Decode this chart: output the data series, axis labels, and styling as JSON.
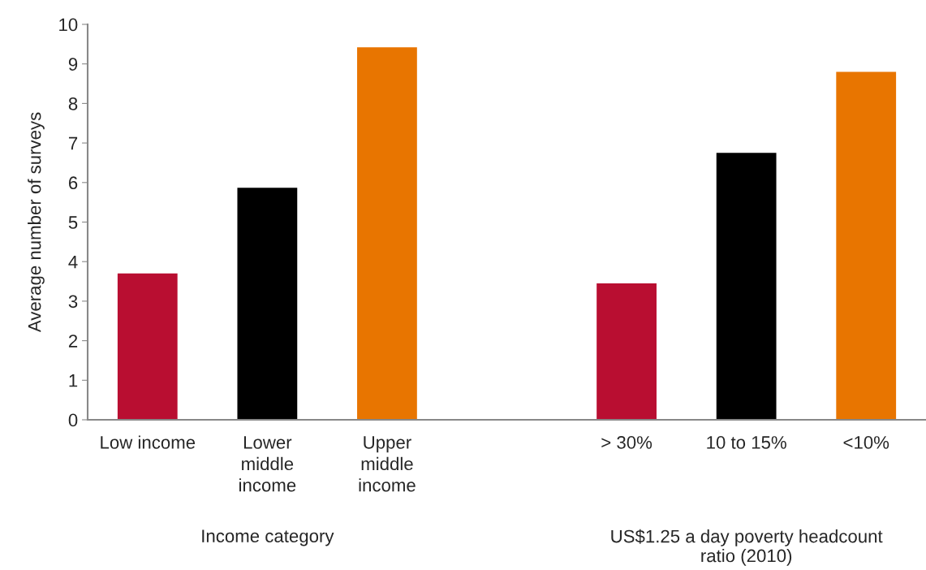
{
  "chart_data": {
    "type": "bar",
    "ylabel": "Average number of surveys",
    "categories": [
      "Low income",
      "Lower\nmiddle\nincome",
      "Upper\nmiddle\nincome",
      null,
      "> 30%",
      "10 to 15%",
      "<10%"
    ],
    "values": [
      3.7,
      5.87,
      9.42,
      null,
      3.45,
      6.75,
      8.8
    ],
    "colors": [
      "#b90e31",
      "#000000",
      "#e87500",
      null,
      "#b90e31",
      "#000000",
      "#e87500"
    ],
    "ylim": [
      0,
      10
    ],
    "yticks": [
      0,
      1,
      2,
      3,
      4,
      5,
      6,
      7,
      8,
      9,
      10
    ],
    "annotations": [
      "Income category",
      "US$1.25 a day poverty headcount\nratio (2010)"
    ],
    "grid": false
  }
}
